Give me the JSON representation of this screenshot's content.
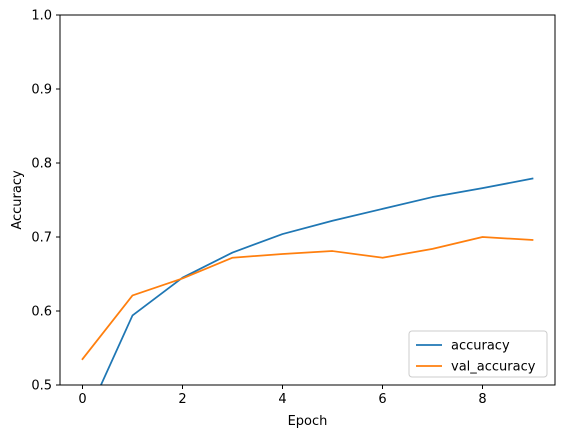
{
  "chart_data": {
    "type": "line",
    "title": "",
    "xlabel": "Epoch",
    "ylabel": "Accuracy",
    "xlim": [
      -0.45,
      9.45
    ],
    "ylim": [
      0.5,
      1.0
    ],
    "xticks": [
      0,
      2,
      4,
      6,
      8
    ],
    "yticks": [
      0.5,
      0.6,
      0.7,
      0.8,
      0.9,
      1.0
    ],
    "xtick_labels": [
      "0",
      "2",
      "4",
      "6",
      "8"
    ],
    "ytick_labels": [
      "0.5",
      "0.6",
      "0.7",
      "0.8",
      "0.9",
      "1.0"
    ],
    "grid": false,
    "legend_position": "lower-right",
    "x": [
      0,
      1,
      2,
      3,
      4,
      5,
      6,
      7,
      8,
      9
    ],
    "series": [
      {
        "name": "accuracy",
        "color": "#1f77b4",
        "values": [
          0.445,
          0.594,
          0.645,
          0.679,
          0.704,
          0.722,
          0.738,
          0.754,
          0.766,
          0.779
        ]
      },
      {
        "name": "val_accuracy",
        "color": "#ff7f0e",
        "values": [
          0.535,
          0.621,
          0.644,
          0.672,
          0.677,
          0.681,
          0.672,
          0.684,
          0.7,
          0.696
        ]
      }
    ]
  }
}
